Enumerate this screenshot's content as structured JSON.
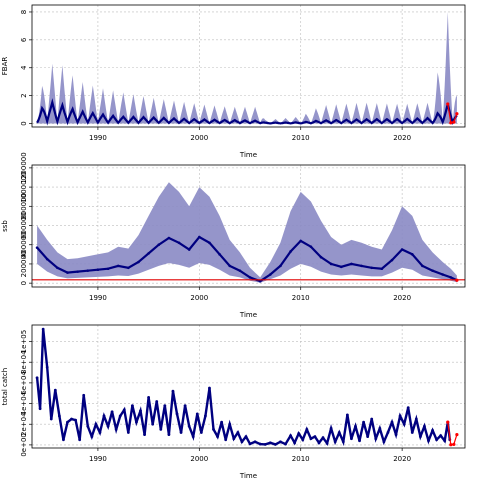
{
  "chart_data": [
    {
      "type": "line",
      "xlabel": "Time",
      "ylabel": "FBAR",
      "xlim": [
        1983.5,
        2026.2
      ],
      "ylim": [
        -0.25,
        8.5
      ],
      "x_ticks": [
        1990,
        2000,
        2010,
        2020
      ],
      "y_ticks": [
        0,
        2,
        4,
        6,
        8
      ],
      "grid": true,
      "colors": {
        "band": "#8a8ac4",
        "line": "#000080",
        "forecast": "#ff0000"
      },
      "median_envelope": [
        [
          1984.0,
          0.6
        ],
        [
          1985.0,
          1.6
        ],
        [
          1986.2,
          1.4
        ],
        [
          1988.0,
          0.9
        ],
        [
          1990.0,
          0.7
        ],
        [
          1992.0,
          0.5
        ],
        [
          1995.0,
          0.45
        ],
        [
          1998.0,
          0.35
        ],
        [
          2000.0,
          0.3
        ],
        [
          2003.0,
          0.25
        ],
        [
          2006.0,
          0.2
        ],
        [
          2006.5,
          0.06
        ],
        [
          2010.0,
          0.08
        ],
        [
          2012.0,
          0.22
        ],
        [
          2016.0,
          0.3
        ],
        [
          2020.0,
          0.32
        ],
        [
          2023.0,
          0.4
        ],
        [
          2024.5,
          1.4
        ],
        [
          2025.4,
          0.7
        ]
      ],
      "upper_envelope": [
        [
          1984.0,
          1.2
        ],
        [
          1985.0,
          4.2
        ],
        [
          1986.2,
          4.4
        ],
        [
          1988.0,
          3.1
        ],
        [
          1990.0,
          2.6
        ],
        [
          1992.0,
          2.3
        ],
        [
          1995.0,
          1.9
        ],
        [
          1998.0,
          1.6
        ],
        [
          2000.0,
          1.4
        ],
        [
          2003.0,
          1.2
        ],
        [
          2006.0,
          1.2
        ],
        [
          2006.5,
          0.25
        ],
        [
          2010.0,
          0.5
        ],
        [
          2012.0,
          1.3
        ],
        [
          2016.0,
          1.5
        ],
        [
          2020.0,
          1.4
        ],
        [
          2023.0,
          1.5
        ],
        [
          2024.5,
          8.0
        ],
        [
          2025.4,
          2.5
        ]
      ],
      "forecast_points": [
        [
          2024.5,
          1.4
        ],
        [
          2024.8,
          0.05
        ],
        [
          2025.1,
          0.1
        ],
        [
          2025.4,
          0.7
        ]
      ]
    },
    {
      "type": "line",
      "xlabel": "Time",
      "ylabel": "ssb",
      "xlim": [
        1983.5,
        2026.2
      ],
      "ylim": [
        -40000,
        1230000
      ],
      "x_ticks": [
        1990,
        2000,
        2010,
        2020
      ],
      "y_ticks": [
        0,
        200000,
        400000,
        600000,
        800000,
        1000000,
        1200000
      ],
      "grid": true,
      "reference_line": 35000,
      "colors": {
        "band": "#8a8ac4",
        "line": "#000080",
        "forecast": "#ff0000",
        "reference": "#e00000"
      },
      "median": [
        [
          1984.0,
          370000
        ],
        [
          1985.0,
          250000
        ],
        [
          1986.0,
          160000
        ],
        [
          1987.0,
          110000
        ],
        [
          1988.0,
          120000
        ],
        [
          1989.0,
          130000
        ],
        [
          1990.0,
          140000
        ],
        [
          1991.0,
          150000
        ],
        [
          1992.0,
          180000
        ],
        [
          1993.0,
          160000
        ],
        [
          1994.0,
          220000
        ],
        [
          1995.0,
          310000
        ],
        [
          1996.0,
          400000
        ],
        [
          1997.0,
          470000
        ],
        [
          1998.0,
          420000
        ],
        [
          1999.0,
          350000
        ],
        [
          2000.0,
          480000
        ],
        [
          2001.0,
          420000
        ],
        [
          2002.0,
          300000
        ],
        [
          2003.0,
          180000
        ],
        [
          2004.0,
          130000
        ],
        [
          2005.0,
          60000
        ],
        [
          2006.0,
          20000
        ],
        [
          2007.0,
          90000
        ],
        [
          2008.0,
          180000
        ],
        [
          2009.0,
          330000
        ],
        [
          2010.0,
          440000
        ],
        [
          2011.0,
          380000
        ],
        [
          2012.0,
          270000
        ],
        [
          2013.0,
          200000
        ],
        [
          2014.0,
          170000
        ],
        [
          2015.0,
          200000
        ],
        [
          2016.0,
          180000
        ],
        [
          2017.0,
          160000
        ],
        [
          2018.0,
          150000
        ],
        [
          2019.0,
          240000
        ],
        [
          2020.0,
          350000
        ],
        [
          2021.0,
          300000
        ],
        [
          2022.0,
          180000
        ],
        [
          2023.0,
          130000
        ],
        [
          2024.0,
          90000
        ],
        [
          2024.8,
          60000
        ],
        [
          2025.4,
          30000
        ]
      ],
      "lower": [
        [
          1984.0,
          200000
        ],
        [
          1985.0,
          120000
        ],
        [
          1986.0,
          70000
        ],
        [
          1987.0,
          50000
        ],
        [
          1988.0,
          55000
        ],
        [
          1989.0,
          60000
        ],
        [
          1990.0,
          65000
        ],
        [
          1991.0,
          70000
        ],
        [
          1992.0,
          80000
        ],
        [
          1993.0,
          75000
        ],
        [
          1994.0,
          100000
        ],
        [
          1995.0,
          140000
        ],
        [
          1996.0,
          180000
        ],
        [
          1997.0,
          210000
        ],
        [
          1998.0,
          190000
        ],
        [
          1999.0,
          160000
        ],
        [
          2000.0,
          210000
        ],
        [
          2001.0,
          190000
        ],
        [
          2002.0,
          140000
        ],
        [
          2003.0,
          80000
        ],
        [
          2004.0,
          60000
        ],
        [
          2005.0,
          25000
        ],
        [
          2006.0,
          5000
        ],
        [
          2007.0,
          40000
        ],
        [
          2008.0,
          80000
        ],
        [
          2009.0,
          150000
        ],
        [
          2010.0,
          200000
        ],
        [
          2011.0,
          170000
        ],
        [
          2012.0,
          120000
        ],
        [
          2013.0,
          90000
        ],
        [
          2014.0,
          80000
        ],
        [
          2015.0,
          90000
        ],
        [
          2016.0,
          80000
        ],
        [
          2017.0,
          70000
        ],
        [
          2018.0,
          70000
        ],
        [
          2019.0,
          110000
        ],
        [
          2020.0,
          160000
        ],
        [
          2021.0,
          140000
        ],
        [
          2022.0,
          80000
        ],
        [
          2023.0,
          60000
        ],
        [
          2024.0,
          40000
        ],
        [
          2024.8,
          25000
        ],
        [
          2025.4,
          10000
        ]
      ],
      "upper": [
        [
          1984.0,
          600000
        ],
        [
          1985.0,
          450000
        ],
        [
          1986.0,
          320000
        ],
        [
          1987.0,
          250000
        ],
        [
          1988.0,
          260000
        ],
        [
          1989.0,
          280000
        ],
        [
          1990.0,
          300000
        ],
        [
          1991.0,
          320000
        ],
        [
          1992.0,
          380000
        ],
        [
          1993.0,
          360000
        ],
        [
          1994.0,
          500000
        ],
        [
          1995.0,
          700000
        ],
        [
          1996.0,
          900000
        ],
        [
          1997.0,
          1050000
        ],
        [
          1998.0,
          950000
        ],
        [
          1999.0,
          800000
        ],
        [
          2000.0,
          1000000
        ],
        [
          2001.0,
          900000
        ],
        [
          2002.0,
          700000
        ],
        [
          2003.0,
          450000
        ],
        [
          2004.0,
          320000
        ],
        [
          2005.0,
          160000
        ],
        [
          2006.0,
          60000
        ],
        [
          2007.0,
          220000
        ],
        [
          2008.0,
          420000
        ],
        [
          2009.0,
          750000
        ],
        [
          2010.0,
          950000
        ],
        [
          2011.0,
          850000
        ],
        [
          2012.0,
          650000
        ],
        [
          2013.0,
          480000
        ],
        [
          2014.0,
          400000
        ],
        [
          2015.0,
          450000
        ],
        [
          2016.0,
          420000
        ],
        [
          2017.0,
          380000
        ],
        [
          2018.0,
          350000
        ],
        [
          2019.0,
          550000
        ],
        [
          2020.0,
          800000
        ],
        [
          2021.0,
          700000
        ],
        [
          2022.0,
          450000
        ],
        [
          2023.0,
          320000
        ],
        [
          2024.0,
          220000
        ],
        [
          2024.8,
          150000
        ],
        [
          2025.4,
          80000
        ]
      ],
      "forecast_points": [
        [
          2025.4,
          30000
        ]
      ]
    },
    {
      "type": "line",
      "xlabel": "Time",
      "ylabel": "total catch",
      "xlim": [
        1983.5,
        2026.2
      ],
      "ylim": [
        -3000,
        116000
      ],
      "x_ticks": [
        1990,
        2000,
        2010,
        2020
      ],
      "y_ticks": [
        0,
        20000,
        40000,
        60000,
        80000,
        100000
      ],
      "y_tick_labels": [
        "0e+00",
        "2e+04",
        "4e+04",
        "6e+04",
        "8e+04",
        "1e+05"
      ],
      "grid": true,
      "colors": {
        "line": "#000080",
        "forecast": "#ff0000"
      },
      "series": [
        [
          1984.0,
          65000
        ],
        [
          1984.3,
          35000
        ],
        [
          1984.6,
          112000
        ],
        [
          1985.0,
          75000
        ],
        [
          1985.4,
          25000
        ],
        [
          1985.8,
          53000
        ],
        [
          1986.2,
          28000
        ],
        [
          1986.6,
          5000
        ],
        [
          1987.0,
          22000
        ],
        [
          1987.4,
          25000
        ],
        [
          1987.8,
          24000
        ],
        [
          1988.2,
          5000
        ],
        [
          1988.6,
          48000
        ],
        [
          1989.0,
          18000
        ],
        [
          1989.4,
          8000
        ],
        [
          1989.8,
          20000
        ],
        [
          1990.2,
          12000
        ],
        [
          1990.6,
          28000
        ],
        [
          1991.0,
          18000
        ],
        [
          1991.4,
          32000
        ],
        [
          1991.8,
          15000
        ],
        [
          1992.2,
          28000
        ],
        [
          1992.6,
          34000
        ],
        [
          1993.0,
          12000
        ],
        [
          1993.4,
          38000
        ],
        [
          1993.8,
          22000
        ],
        [
          1994.2,
          33000
        ],
        [
          1994.6,
          10000
        ],
        [
          1995.0,
          46000
        ],
        [
          1995.4,
          20000
        ],
        [
          1995.8,
          42000
        ],
        [
          1996.2,
          15000
        ],
        [
          1996.6,
          38000
        ],
        [
          1997.0,
          10000
        ],
        [
          1997.4,
          52000
        ],
        [
          1997.8,
          30000
        ],
        [
          1998.2,
          12000
        ],
        [
          1998.6,
          38000
        ],
        [
          1999.0,
          18000
        ],
        [
          1999.4,
          8000
        ],
        [
          1999.8,
          30000
        ],
        [
          2000.2,
          12000
        ],
        [
          2000.6,
          28000
        ],
        [
          2001.0,
          55000
        ],
        [
          2001.4,
          15000
        ],
        [
          2001.8,
          8000
        ],
        [
          2002.2,
          22000
        ],
        [
          2002.6,
          5000
        ],
        [
          2003.0,
          20000
        ],
        [
          2003.4,
          6000
        ],
        [
          2003.8,
          12000
        ],
        [
          2004.2,
          3000
        ],
        [
          2004.6,
          8000
        ],
        [
          2005.0,
          1000
        ],
        [
          2005.5,
          3000
        ],
        [
          2006.0,
          800
        ],
        [
          2006.5,
          500
        ],
        [
          2007.0,
          2000
        ],
        [
          2007.5,
          500
        ],
        [
          2008.0,
          3000
        ],
        [
          2008.5,
          800
        ],
        [
          2009.0,
          9000
        ],
        [
          2009.4,
          2000
        ],
        [
          2009.8,
          11000
        ],
        [
          2010.2,
          5000
        ],
        [
          2010.6,
          15000
        ],
        [
          2011.0,
          6000
        ],
        [
          2011.4,
          8000
        ],
        [
          2011.8,
          2000
        ],
        [
          2012.2,
          7000
        ],
        [
          2012.6,
          1500
        ],
        [
          2013.0,
          16000
        ],
        [
          2013.4,
          3000
        ],
        [
          2013.8,
          12000
        ],
        [
          2014.2,
          3000
        ],
        [
          2014.6,
          29000
        ],
        [
          2015.0,
          6000
        ],
        [
          2015.4,
          18000
        ],
        [
          2015.8,
          4000
        ],
        [
          2016.2,
          22000
        ],
        [
          2016.6,
          8000
        ],
        [
          2017.0,
          25000
        ],
        [
          2017.4,
          6000
        ],
        [
          2017.8,
          16000
        ],
        [
          2018.2,
          3000
        ],
        [
          2018.6,
          12000
        ],
        [
          2019.0,
          22000
        ],
        [
          2019.4,
          10000
        ],
        [
          2019.8,
          28000
        ],
        [
          2020.2,
          20000
        ],
        [
          2020.6,
          36000
        ],
        [
          2021.0,
          12000
        ],
        [
          2021.4,
          25000
        ],
        [
          2021.8,
          8000
        ],
        [
          2022.2,
          18000
        ],
        [
          2022.6,
          4000
        ],
        [
          2023.0,
          14000
        ],
        [
          2023.4,
          5000
        ],
        [
          2023.8,
          9000
        ],
        [
          2024.2,
          4000
        ],
        [
          2024.5,
          22000
        ],
        [
          2024.7,
          5000
        ]
      ],
      "forecast_points": [
        [
          2024.5,
          22000
        ],
        [
          2024.8,
          200
        ],
        [
          2025.1,
          500
        ],
        [
          2025.4,
          10000
        ]
      ]
    }
  ]
}
